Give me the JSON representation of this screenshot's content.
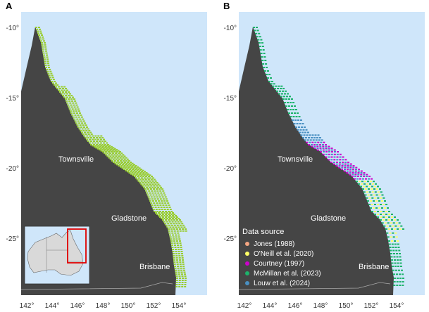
{
  "panels": [
    {
      "label": "A"
    },
    {
      "label": "B"
    }
  ],
  "axes": {
    "x_ticks": [
      "142°",
      "144°",
      "146°",
      "148°",
      "150°",
      "152°",
      "154°"
    ],
    "y_ticks": [
      "-10°",
      "-15°",
      "-20°",
      "-25°"
    ]
  },
  "cities": [
    "Townsville",
    "Gladstone",
    "Brisbane"
  ],
  "legend": {
    "title": "Data source",
    "entries": [
      {
        "label": "Jones (1988)",
        "color": "#f4a582"
      },
      {
        "label": "O'Neill et al. (2020)",
        "color": "#ffff66"
      },
      {
        "label": "Courtney (1997)",
        "color": "#cc00cc"
      },
      {
        "label": "McMillan et al. (2023)",
        "color": "#1db36b"
      },
      {
        "label": "Louw et al. (2024)",
        "color": "#4a90c2"
      }
    ]
  },
  "colors": {
    "ocean": "#cfe6fa",
    "land": "#454545",
    "coverage": "#9acd32",
    "inset_land": "#d9d9d9",
    "inset_box": "#e00000"
  }
}
